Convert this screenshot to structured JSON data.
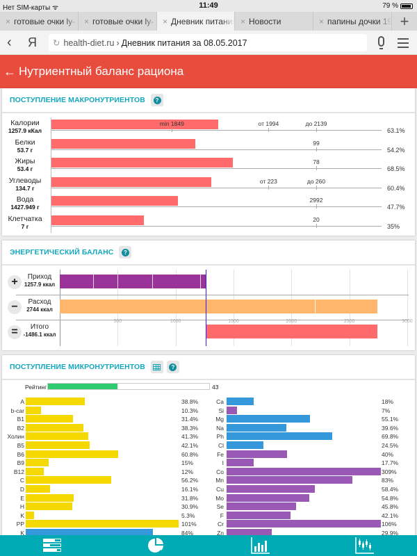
{
  "statusbar": {
    "carrier": "Нет SIM-карты",
    "wifi_icon": "wifi-icon",
    "time": "11:49",
    "battery": "79 %",
    "battery_level": 0.79
  },
  "tabs": [
    {
      "label": "готовые очки ly-",
      "active": false
    },
    {
      "label": "готовые очки ly-",
      "active": false
    },
    {
      "label": "Дневник питания",
      "active": true
    },
    {
      "label": "Новости",
      "active": false
    },
    {
      "label": "папины дочки 19",
      "active": false
    }
  ],
  "tab_close": "×",
  "new_tab": "+",
  "addressbar": {
    "back": "‹",
    "yandex": "Я",
    "reload": "↻",
    "domain": "health-diet.ru",
    "separator": "›",
    "page_title": "Дневник питания за 08.05.2017"
  },
  "header": {
    "back_arrow": "🡐",
    "title": "Нутриентный баланс рациона",
    "color": "#e84c3d"
  },
  "macro": {
    "title": "ПОСТУПЛЕНИЕ МАКРОНУТРИЕНТОВ",
    "help": "?",
    "rows": [
      {
        "name": "Калории",
        "amount": "1257.9 кКал",
        "percent": "63.1%",
        "value": 63.1,
        "ticks": [
          {
            "label": "min 1849",
            "pos": 0.455
          },
          {
            "label": "от 1994",
            "pos": 0.82
          },
          {
            "label": "до 2139",
            "pos": 1.0
          }
        ]
      },
      {
        "name": "Белки",
        "amount": "53.7 г",
        "percent": "54.2%",
        "value": 54.2,
        "ticks": [
          {
            "label": "99",
            "pos": 1.0
          }
        ]
      },
      {
        "name": "Жиры",
        "amount": "53.4 г",
        "percent": "68.5%",
        "value": 68.5,
        "ticks": [
          {
            "label": "78",
            "pos": 1.0
          }
        ]
      },
      {
        "name": "Углеводы",
        "amount": "134.7 г",
        "percent": "60.4%",
        "value": 60.4,
        "ticks": [
          {
            "label": "от 223",
            "pos": 0.82
          },
          {
            "label": "до 260",
            "pos": 1.0
          }
        ]
      },
      {
        "name": "Вода",
        "amount": "1427.949 г",
        "percent": "47.7%",
        "value": 47.7,
        "ticks": [
          {
            "label": "2992",
            "pos": 1.0
          }
        ]
      },
      {
        "name": "Клетчатка",
        "amount": "7 г",
        "percent": "35%",
        "value": 35,
        "ticks": [
          {
            "label": "20",
            "pos": 1.0
          }
        ]
      }
    ],
    "bar_color": "#ff6b6b"
  },
  "energy": {
    "title": "ЭНЕРГЕТИЧЕСКИЙ БАЛАНС",
    "help": "?",
    "axis_max": 3000,
    "axis_ticks": [
      500,
      1000,
      1500,
      2000,
      2500,
      3000
    ],
    "rows": [
      {
        "sign": "+",
        "name": "Приход",
        "amount": "1257.9 ккал",
        "start": 0,
        "end": 1257.9,
        "color": "#993399",
        "dividers": [
          290,
          500,
          800,
          1210
        ]
      },
      {
        "sign": "−",
        "name": "Расход",
        "amount": "2744 ккал",
        "start": 0,
        "end": 2744,
        "color": "#ffb56b",
        "dividers": [
          2200
        ]
      },
      {
        "sign": "=",
        "name": "Итого",
        "amount": "-1486.1 ккал",
        "start": 1257.9,
        "end": 2744,
        "color": "#ff6b6b",
        "dividers": []
      }
    ],
    "marker_value": 1257.9,
    "marker_color": "#2b1df0"
  },
  "micro": {
    "title": "ПОСТУПЛЕНИЕ МИКРОНУТРИЕНТОВ",
    "table_icon": "table-icon",
    "help": "?",
    "rating": {
      "label": "Рейтинг",
      "value": 43,
      "color": "#2ecc71"
    },
    "vitamins": [
      {
        "name": "A",
        "percent": "38.8%",
        "value": 38.8,
        "color": "#f5d800"
      },
      {
        "name": "b-car",
        "percent": "10.3%",
        "value": 10.3,
        "color": "#f5d800"
      },
      {
        "name": "B1",
        "percent": "31.4%",
        "value": 31.4,
        "color": "#f5d800"
      },
      {
        "name": "B2",
        "percent": "38.3%",
        "value": 38.3,
        "color": "#f5d800"
      },
      {
        "name": "Холин",
        "percent": "41.3%",
        "value": 41.3,
        "color": "#f5d800"
      },
      {
        "name": "B5",
        "percent": "42.1%",
        "value": 42.1,
        "color": "#f5d800"
      },
      {
        "name": "B6",
        "percent": "60.8%",
        "value": 60.8,
        "color": "#f5d800"
      },
      {
        "name": "B9",
        "percent": "15%",
        "value": 15,
        "color": "#f5d800"
      },
      {
        "name": "B12",
        "percent": "12%",
        "value": 12,
        "color": "#f5d800"
      },
      {
        "name": "C",
        "percent": "56.2%",
        "value": 56.2,
        "color": "#f5d800"
      },
      {
        "name": "D",
        "percent": "16.1%",
        "value": 16.1,
        "color": "#f5d800"
      },
      {
        "name": "E",
        "percent": "31.8%",
        "value": 31.8,
        "color": "#f5d800"
      },
      {
        "name": "H",
        "percent": "30.9%",
        "value": 30.9,
        "color": "#f5d800"
      },
      {
        "name": "K",
        "percent": "5.3%",
        "value": 5.3,
        "color": "#f5d800"
      },
      {
        "name": "PP",
        "percent": "101%",
        "value": 101,
        "color": "#f5d800"
      },
      {
        "name": "K",
        "percent": "84%",
        "value": 84,
        "color": "#3498db"
      }
    ],
    "minerals": [
      {
        "name": "Ca",
        "percent": "18%",
        "value": 18,
        "color": "#3498db"
      },
      {
        "name": "Si",
        "percent": "7%",
        "value": 7,
        "color": "#9b59b6"
      },
      {
        "name": "Mg",
        "percent": "55.1%",
        "value": 55.1,
        "color": "#3498db"
      },
      {
        "name": "Na",
        "percent": "39.6%",
        "value": 39.6,
        "color": "#3498db"
      },
      {
        "name": "Ph",
        "percent": "69.8%",
        "value": 69.8,
        "color": "#3498db"
      },
      {
        "name": "Cl",
        "percent": "24.5%",
        "value": 24.5,
        "color": "#3498db"
      },
      {
        "name": "Fe",
        "percent": "40%",
        "value": 40,
        "color": "#9b59b6"
      },
      {
        "name": "I",
        "percent": "17.7%",
        "value": 17.7,
        "color": "#9b59b6"
      },
      {
        "name": "Co",
        "percent": "309%",
        "value": 309,
        "color": "#9b59b6"
      },
      {
        "name": "Mn",
        "percent": "83%",
        "value": 83,
        "color": "#9b59b6"
      },
      {
        "name": "Cu",
        "percent": "58.4%",
        "value": 58.4,
        "color": "#9b59b6"
      },
      {
        "name": "Mo",
        "percent": "54.8%",
        "value": 54.8,
        "color": "#9b59b6"
      },
      {
        "name": "Se",
        "percent": "45.8%",
        "value": 45.8,
        "color": "#9b59b6"
      },
      {
        "name": "F",
        "percent": "42.1%",
        "value": 42.1,
        "color": "#9b59b6"
      },
      {
        "name": "Cr",
        "percent": "106%",
        "value": 106,
        "color": "#9b59b6"
      },
      {
        "name": "Zn",
        "percent": "29.9%",
        "value": 29.9,
        "color": "#9b59b6"
      }
    ]
  },
  "bottomnav": [
    {
      "name": "nutrient-bars-icon"
    },
    {
      "name": "pie-chart-icon"
    },
    {
      "name": "bar-chart-icon"
    },
    {
      "name": "candlestick-chart-icon"
    }
  ],
  "bottomnav_color": "#00aab5"
}
